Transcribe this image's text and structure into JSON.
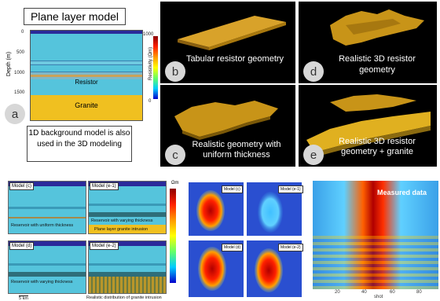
{
  "panel_a": {
    "title": "Plane layer model",
    "ylabel": "Depth (m)",
    "depth_ticks": [
      "0",
      "500",
      "1000",
      "1500"
    ],
    "layer_resistor": "Resistor",
    "layer_granite": "Granite",
    "colorbar_label": "Resistivity (Ωm)",
    "colorbar_max": "1000",
    "colorbar_min": "0",
    "badge": "a",
    "caption": "1D background model is also used in the 3D modeling"
  },
  "panel_b": {
    "text": "Tabular resistor geometry",
    "badge": "b"
  },
  "panel_c": {
    "text": "Realistic geometry with uniform thickness",
    "badge": "c"
  },
  "panel_d": {
    "text": "Realistic 3D resistor geometry",
    "badge": "d"
  },
  "panel_e": {
    "text": "Realistic 3D resistor geometry + granite",
    "badge": "e"
  },
  "sections": {
    "unit": "Ωm",
    "model_c": "Model (c)",
    "model_c_text": "Reservoir with uniform thickness",
    "model_e1": "Model (e-1)",
    "model_e1_text": "Reservoir with varying thickness",
    "model_e1_text2": "Plane layer granite intrusion",
    "model_d": "Model (d)",
    "model_d_text": "Reservoir with varying thickness",
    "model_e2": "Model (e-2)",
    "scale": "5 km",
    "bottom_text": "Realistic distribution of granite intrusion"
  },
  "responses": {
    "model_c": "Model (c)",
    "model_e1": "Model (e-1)",
    "model_d": "Model (d)",
    "model_e2": "Model (e-2)"
  },
  "measured": {
    "title": "Measured data",
    "xlabel": "shot",
    "xticks": [
      "20",
      "40",
      "60",
      "80"
    ]
  },
  "colors": {
    "background_blue": "#55c4dc",
    "top_navy": "#2a2a9a",
    "resistor_band": "#c9a25a",
    "granite": "#f0c020",
    "geometry_gold": "#c89418"
  }
}
